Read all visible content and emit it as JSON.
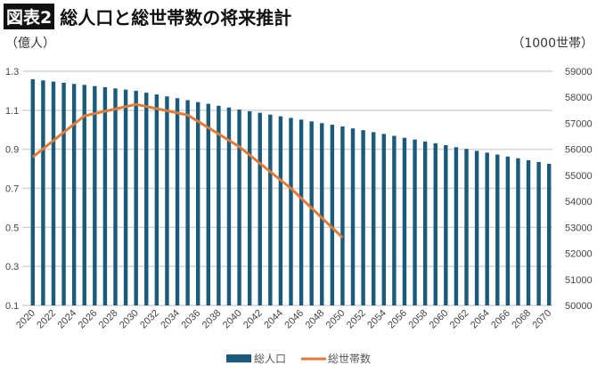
{
  "title": {
    "badge": "図表2",
    "text": "総人口と総世帯数の将来推計"
  },
  "chart_data": {
    "type": "bar+line",
    "title": "総人口と総世帯数の将来推計",
    "left_unit": "（億人）",
    "right_unit": "（1000世帯）",
    "left_axis": {
      "ylim": [
        0.1,
        1.3
      ],
      "ticks": [
        "1.3",
        "1.1",
        "0.9",
        "0.7",
        "0.5",
        "0.3",
        "0.1"
      ]
    },
    "right_axis": {
      "ylim": [
        50000,
        59000
      ],
      "ticks": [
        "59000",
        "58000",
        "57000",
        "56000",
        "55000",
        "54000",
        "53000",
        "52000",
        "51000",
        "50000"
      ]
    },
    "x_tick_labels": [
      "2020",
      "2022",
      "2024",
      "2026",
      "2028",
      "2030",
      "2032",
      "2034",
      "2036",
      "2038",
      "2040",
      "2042",
      "2044",
      "2046",
      "2048",
      "2050",
      "2052",
      "2054",
      "2056",
      "2058",
      "2060",
      "2062",
      "2064",
      "2066",
      "2068",
      "2070"
    ],
    "grid": true,
    "legend_position": "bottom",
    "series": [
      {
        "name": "総人口",
        "type": "bar",
        "axis": "left",
        "color": "#1a5a7a",
        "x_start": 2020,
        "values": [
          1.259,
          1.253,
          1.247,
          1.241,
          1.235,
          1.23,
          1.224,
          1.218,
          1.212,
          1.206,
          1.2,
          1.19,
          1.181,
          1.171,
          1.162,
          1.152,
          1.142,
          1.133,
          1.123,
          1.114,
          1.104,
          1.095,
          1.087,
          1.078,
          1.069,
          1.061,
          1.052,
          1.043,
          1.034,
          1.026,
          1.017,
          1.007,
          0.998,
          0.988,
          0.979,
          0.969,
          0.959,
          0.95,
          0.94,
          0.931,
          0.921,
          0.911,
          0.902,
          0.892,
          0.883,
          0.873,
          0.863,
          0.854,
          0.844,
          0.835,
          0.826
        ]
      },
      {
        "name": "総世帯数",
        "type": "line",
        "axis": "right",
        "color": "#e07b39",
        "x": [
          2020,
          2025,
          2030,
          2035,
          2040,
          2045,
          2050
        ],
        "values": [
          55705,
          57285,
          57728,
          57317,
          56100,
          54500,
          52607
        ]
      }
    ]
  }
}
